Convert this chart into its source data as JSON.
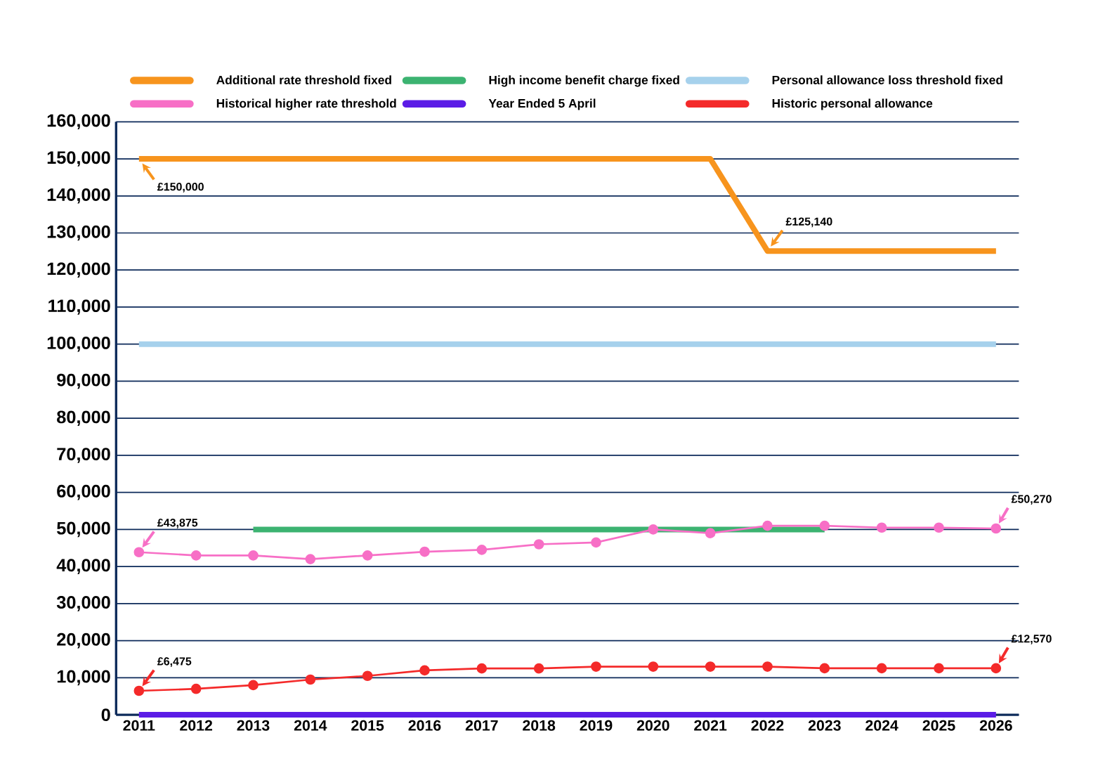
{
  "chart_data": {
    "type": "line",
    "categories": [
      "2011",
      "2012",
      "2013",
      "2014",
      "2015",
      "2016",
      "2017",
      "2018",
      "2019",
      "2020",
      "2021",
      "2022",
      "2023",
      "2024",
      "2025",
      "2026"
    ],
    "series": [
      {
        "name": "Additional rate threshold fixed",
        "color": "#f7941d",
        "values": [
          150000,
          150000,
          150000,
          150000,
          150000,
          150000,
          150000,
          150000,
          150000,
          150000,
          150000,
          125140,
          125140,
          125140,
          125140,
          125140
        ]
      },
      {
        "name": "High income benefit charge fixed",
        "color": "#3cb371",
        "values": [
          null,
          null,
          50000,
          50000,
          50000,
          50000,
          50000,
          50000,
          50000,
          50000,
          50000,
          50000,
          50000,
          null,
          null,
          null
        ]
      },
      {
        "name": "Personal allowance loss threshold fixed",
        "color": "#a6d1ec",
        "values": [
          100000,
          100000,
          100000,
          100000,
          100000,
          100000,
          100000,
          100000,
          100000,
          100000,
          100000,
          100000,
          100000,
          100000,
          100000,
          100000
        ]
      },
      {
        "name": "Historical higher rate threshold",
        "color": "#f76fc6",
        "marker": "circle",
        "values": [
          43875,
          43000,
          43000,
          42000,
          43000,
          44000,
          44500,
          46000,
          46500,
          50000,
          49000,
          51000,
          51000,
          50500,
          50500,
          50270
        ]
      },
      {
        "name": "Year Ended 5 April",
        "color": "#5b1ce6",
        "values": [
          0,
          0,
          0,
          0,
          0,
          0,
          0,
          0,
          0,
          0,
          0,
          0,
          0,
          0,
          0,
          0
        ]
      },
      {
        "name": "Historic personal allowance",
        "color": "#f42a2a",
        "marker": "circle",
        "values": [
          6475,
          7000,
          8000,
          9500,
          10500,
          12000,
          12500,
          12500,
          13000,
          13000,
          13000,
          13000,
          12570,
          12570,
          12570,
          12570
        ]
      }
    ],
    "ylim": [
      0,
      160000
    ],
    "yticks": [
      0,
      {
        "value": 10000,
        "label": "10,000"
      },
      {
        "value": 20000,
        "label": "20,000"
      },
      {
        "value": 30000,
        "label": "30,000"
      },
      {
        "value": 40000,
        "label": "40,000"
      },
      {
        "value": 50000,
        "label": "50,000"
      },
      {
        "value": 60000,
        "label": "60,000"
      },
      {
        "value": 70000,
        "label": "70,000"
      },
      {
        "value": 80000,
        "label": "80,000"
      },
      {
        "value": 90000,
        "label": "90,000"
      },
      {
        "value": 100000,
        "label": "100,000"
      },
      {
        "value": 110000,
        "label": "110,000"
      },
      {
        "value": 120000,
        "label": "120,000"
      },
      {
        "value": 130000,
        "label": "130,000"
      },
      {
        "value": 140000,
        "label": "140,000"
      },
      {
        "value": 150000,
        "label": "150,000"
      },
      {
        "value": 160000,
        "label": "160,000"
      }
    ],
    "grid": "y",
    "legend": "top",
    "annotations": [
      {
        "text": "£150,000",
        "x": "2011",
        "y": 150000
      },
      {
        "text": "£125,140",
        "x": "2022",
        "y": 125140
      },
      {
        "text": "£43,875",
        "x": "2011",
        "y": 43875
      },
      {
        "text": "£50,270",
        "x": "2026",
        "y": 50270
      },
      {
        "text": "£6,475",
        "x": "2011",
        "y": 6475
      },
      {
        "text": "£12,570",
        "x": "2026",
        "y": 12570
      }
    ]
  }
}
